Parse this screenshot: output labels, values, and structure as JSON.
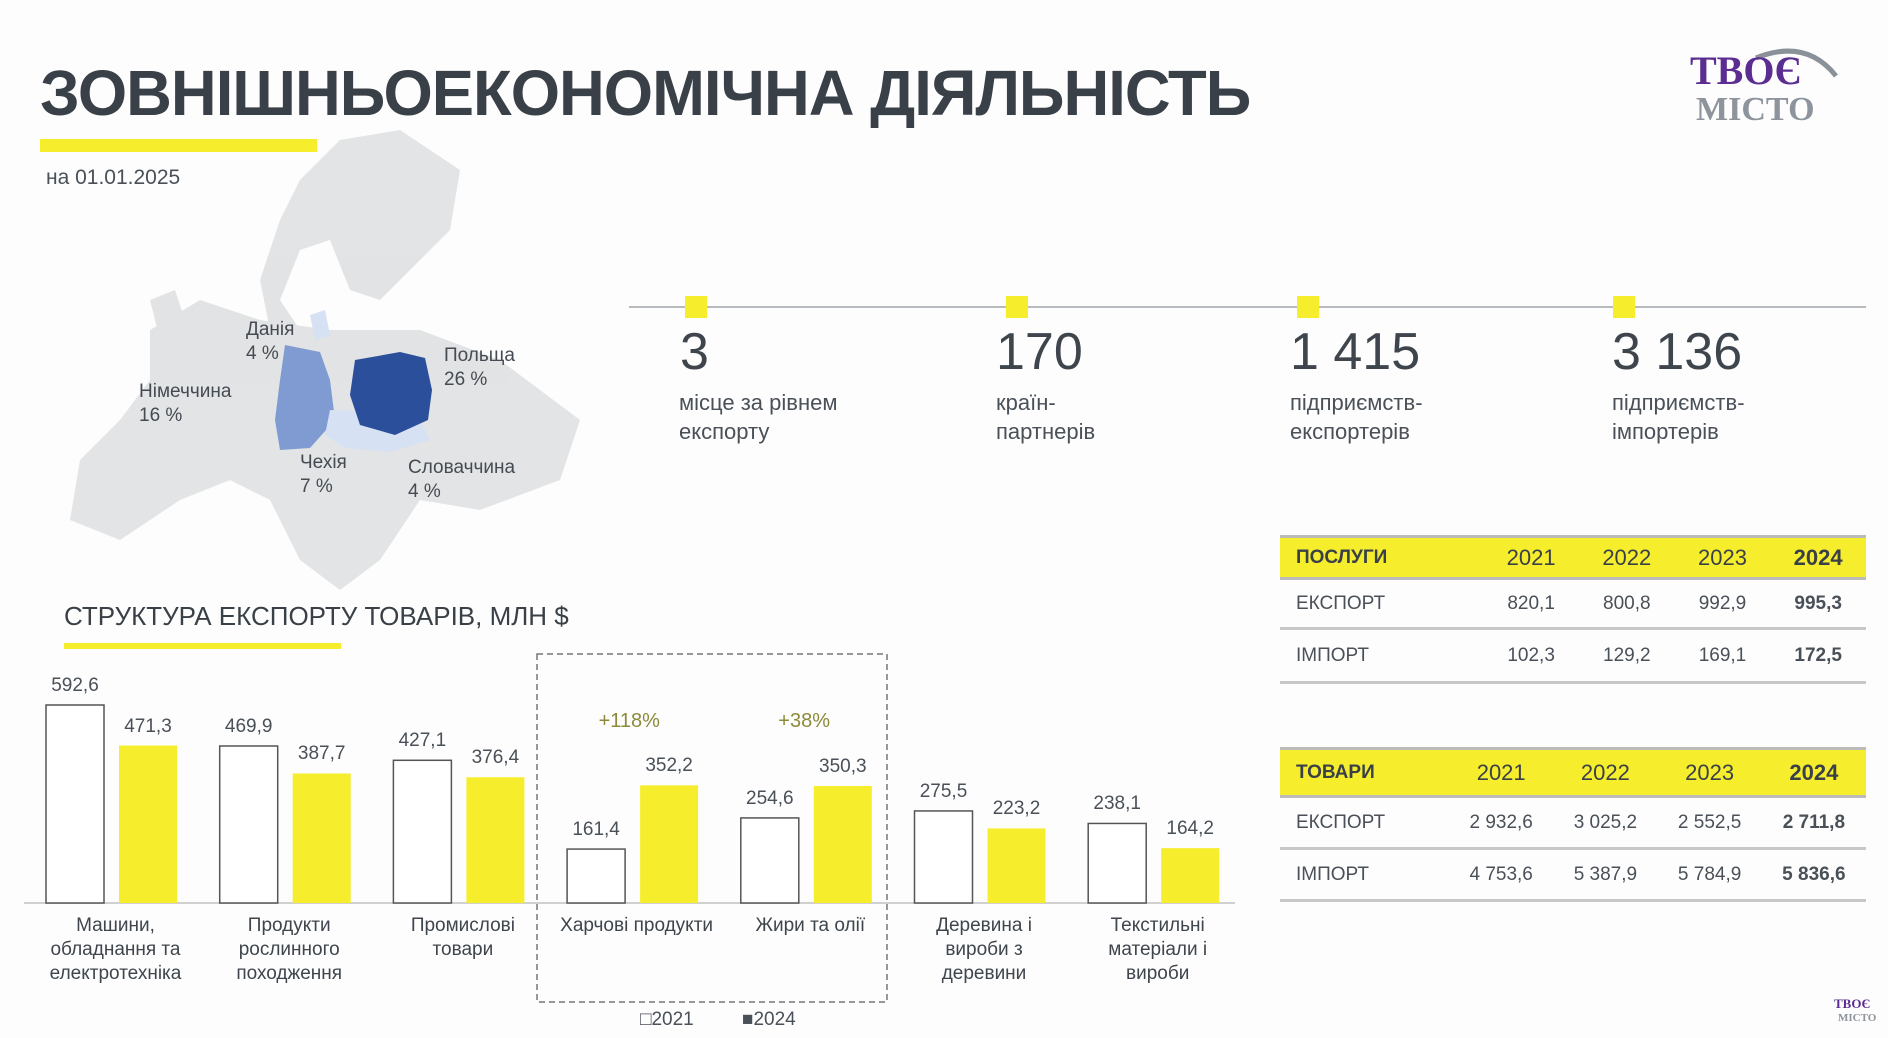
{
  "header": {
    "title": "ЗОВНІШНЬОЕКОНОМІЧНА ДІЯЛЬНІСТЬ",
    "date": "на 01.01.2025",
    "logo_text_top": "ТВОЄ",
    "logo_text_bottom": "МІСТО"
  },
  "map": {
    "labels": [
      {
        "country": "Данія",
        "share": "4 %"
      },
      {
        "country": "Польща",
        "share": "26 %"
      },
      {
        "country": "Німеччина",
        "share": "16 %"
      },
      {
        "country": "Чехія",
        "share": "7 %"
      },
      {
        "country": "Словаччина",
        "share": "4 %"
      }
    ],
    "colors": {
      "poland": "#2c4f9c",
      "germany": "#7f9bd2",
      "minor": "#d6e1f4",
      "land": "#dcdcdc"
    }
  },
  "kpis": [
    {
      "value": "3",
      "label_1": "місце за рівнем",
      "label_2": "експорту"
    },
    {
      "value": "170",
      "label_1": "країн-",
      "label_2": "партнерів"
    },
    {
      "value": "1 415",
      "label_1": "підприємств-",
      "label_2": "експортерів"
    },
    {
      "value": "3 136",
      "label_1": "підприємств-",
      "label_2": "імпортерів"
    }
  ],
  "services_table": {
    "header": [
      "ПОСЛУГИ",
      "2021",
      "2022",
      "2023",
      "2024"
    ],
    "rows": [
      [
        "ЕКСПОРТ",
        "820,1",
        "800,8",
        "992,9",
        "995,3"
      ],
      [
        "ІМПОРТ",
        "102,3",
        "129,2",
        "169,1",
        "172,5"
      ]
    ]
  },
  "goods_table": {
    "header": [
      "ТОВАРИ",
      "2021",
      "2022",
      "2023",
      "2024"
    ],
    "rows": [
      [
        "ЕКСПОРТ",
        "2 932,6",
        "3 025,2",
        "2 552,5",
        "2 711,8"
      ],
      [
        "ІМПОРТ",
        "4 753,6",
        "5 387,9",
        "5 784,9",
        "5 836,6"
      ]
    ]
  },
  "chart_data": {
    "type": "bar",
    "title": "СТРУКТУРА ЕКСПОРТУ ТОВАРІВ, МЛН $",
    "categories": [
      [
        "Машини,",
        "обладнання та",
        "електротехніка"
      ],
      [
        "Продукти",
        "рослинного",
        "походження"
      ],
      [
        "Промислові",
        "товари"
      ],
      [
        "Харчові продукти"
      ],
      [
        "Жири та олії"
      ],
      [
        "Деревина і",
        "вироби з",
        "деревини"
      ],
      [
        "Текстильні",
        "матеріали і",
        "вироби"
      ]
    ],
    "series": [
      {
        "name": "2021",
        "color": "#ffffff",
        "values": [
          592.6,
          469.9,
          427.1,
          161.4,
          254.6,
          275.5,
          238.1
        ],
        "labels": [
          "592,6",
          "469,9",
          "427,1",
          "161,4",
          "254,6",
          "275,5",
          "238,1"
        ]
      },
      {
        "name": "2024",
        "color": "#f6ee2c",
        "values": [
          471.3,
          387.7,
          376.4,
          352.2,
          350.3,
          223.2,
          164.2
        ],
        "labels": [
          "471,3",
          "387,7",
          "376,4",
          "352,2",
          "350,3",
          "223,2",
          "164,2"
        ]
      }
    ],
    "annotations": [
      {
        "category_index": 3,
        "text": "+118%"
      },
      {
        "category_index": 4,
        "text": "+38%"
      }
    ],
    "highlighted_categories": [
      3,
      4
    ],
    "legend": [
      "□2021",
      "■2024"
    ],
    "legend_position": "bottom",
    "ylim": [
      0,
      600
    ],
    "xlabel": "",
    "ylabel": ""
  },
  "footer": {
    "logo_text_top": "ТВОЄ",
    "logo_text_bottom": "МІСТО"
  }
}
